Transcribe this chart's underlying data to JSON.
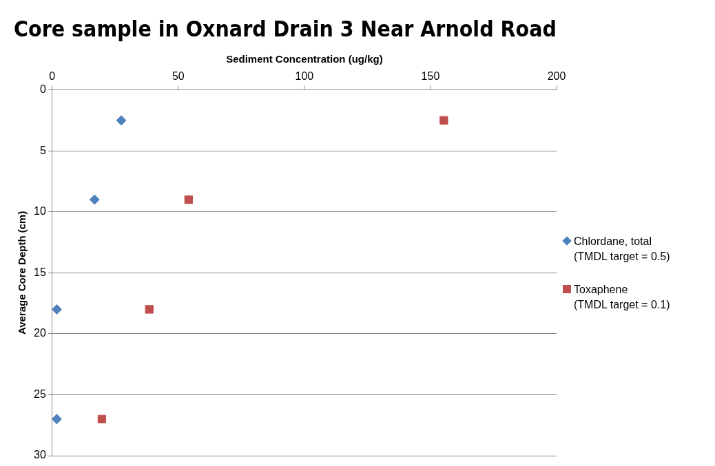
{
  "chart_data": {
    "type": "scatter",
    "title": "Core sample in Oxnard Drain 3 Near Arnold Road",
    "xlabel": "Sediment Concentration (ug/kg)",
    "ylabel": "Average Core Depth (cm)",
    "xlim": [
      0,
      200
    ],
    "xticks": [
      0,
      50,
      100,
      150,
      200
    ],
    "ylim": [
      30,
      0
    ],
    "yticks": [
      0,
      5,
      10,
      15,
      20,
      25,
      30
    ],
    "grid": "y",
    "legend": "right",
    "series": [
      {
        "name": "Chlordane, total\n(TMDL target = 0.5)",
        "color": "#4f81bd",
        "marker": "diamond",
        "x": [
          27.4,
          16.8,
          1.8,
          1.8
        ],
        "values": [
          2.5,
          9,
          18,
          27
        ]
      },
      {
        "name": "Toxaphene\n(TMDL target = 0.1)",
        "color": "#c0504d",
        "marker": "square",
        "x": [
          155.3,
          54.1,
          38.5,
          19.7
        ],
        "values": [
          2.5,
          9,
          18,
          27
        ]
      }
    ]
  }
}
